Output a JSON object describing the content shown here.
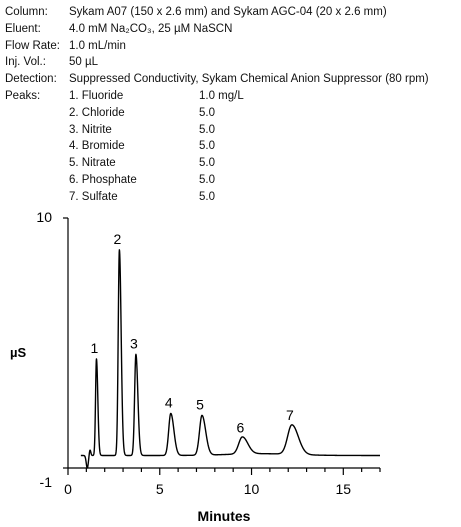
{
  "conditions": [
    {
      "label": "Column:",
      "value": "Sykam A07 (150 x 2.6 mm) and Sykam AGC-04 (20 x 2.6 mm)"
    },
    {
      "label": "Eluent:",
      "value": "4.0 mM Na₂CO₃, 25 µM NaSCN"
    },
    {
      "label": "Flow Rate:",
      "value": "1.0 mL/min"
    },
    {
      "label": "Inj. Vol.:",
      "value": "50 µL"
    },
    {
      "label": "Detection:",
      "value": "Suppressed Conductivity, Sykam Chemical Anion Suppressor (80 rpm)"
    }
  ],
  "peaks_label": "Peaks:",
  "peaks": [
    {
      "name": "1. Fluoride",
      "conc": "1.0 mg/L"
    },
    {
      "name": "2. Chloride",
      "conc": "5.0"
    },
    {
      "name": "3. Nitrite",
      "conc": "5.0"
    },
    {
      "name": "4. Bromide",
      "conc": "5.0"
    },
    {
      "name": "5. Nitrate",
      "conc": "5.0"
    },
    {
      "name": "6. Phosphate",
      "conc": "5.0"
    },
    {
      "name": "7. Sulfate",
      "conc": "5.0"
    }
  ],
  "chart_data": {
    "type": "line",
    "xlabel": "Minutes",
    "ylabel": "µS",
    "xlim": [
      0,
      17
    ],
    "ylim": [
      -1,
      10
    ],
    "x_ticks": [
      0,
      5,
      10,
      15
    ],
    "y_ticks": [
      -1,
      10
    ],
    "baseline": -0.45,
    "series": [
      {
        "peaks": [
          {
            "label": "1",
            "x": 1.55,
            "y": 3.8
          },
          {
            "label": "2",
            "x": 2.8,
            "y": 8.6
          },
          {
            "label": "3",
            "x": 3.7,
            "y": 4.0
          },
          {
            "label": "4",
            "x": 5.6,
            "y": 1.4
          },
          {
            "label": "5",
            "x": 7.3,
            "y": 1.3
          },
          {
            "label": "6",
            "x": 9.5,
            "y": 0.3
          },
          {
            "label": "7",
            "x": 12.2,
            "y": 0.85
          }
        ]
      }
    ]
  }
}
